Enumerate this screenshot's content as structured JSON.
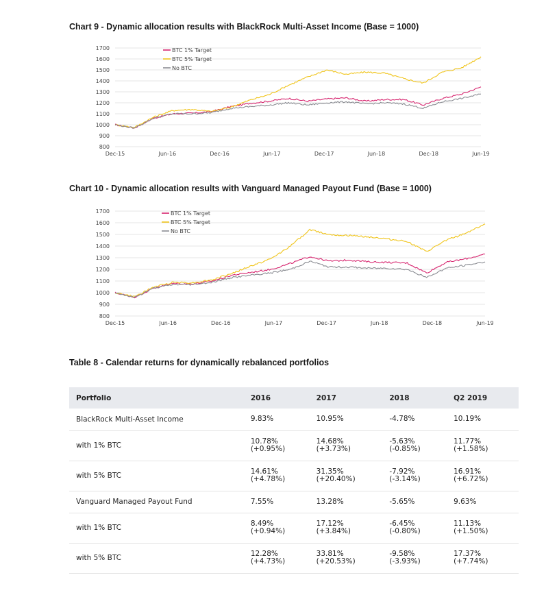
{
  "chart9_title": "Chart 9 - Dynamic allocation results with BlackRock Multi-Asset Income (Base = 1000)",
  "chart10_title": "Chart 10 - Dynamic allocation results with Vanguard Managed Payout Fund (Base = 1000)",
  "table_title": "Table 8 - Calendar returns for dynamically rebalanced portfolios",
  "colors": {
    "btc1": "#d6246e",
    "btc5": "#f0c419",
    "nobtc": "#8a8c92",
    "grid": "#dcdcdc"
  },
  "chart_data": [
    {
      "type": "line",
      "title": "Chart 9 - Dynamic allocation results with BlackRock Multi-Asset Income (Base = 1000)",
      "x_ticks": [
        "Dec-15",
        "Jun-16",
        "Dec-16",
        "Jun-17",
        "Dec-17",
        "Jun-18",
        "Dec-18",
        "Jun-19"
      ],
      "y_ticks": [
        800,
        900,
        1000,
        1100,
        1200,
        1300,
        1400,
        1500,
        1600,
        1700
      ],
      "ylim": [
        800,
        1700
      ],
      "legend_position": "top-left",
      "grid": true,
      "series": [
        {
          "name": "BTC 1% Target",
          "color": "#d6246e",
          "values": [
            1000,
            970,
            1060,
            1100,
            1105,
            1120,
            1165,
            1195,
            1215,
            1240,
            1215,
            1235,
            1245,
            1215,
            1230,
            1230,
            1180,
            1240,
            1280,
            1345
          ]
        },
        {
          "name": "BTC 5% Target",
          "color": "#f0c419",
          "values": [
            1000,
            975,
            1070,
            1130,
            1140,
            1120,
            1160,
            1225,
            1275,
            1360,
            1435,
            1500,
            1460,
            1480,
            1470,
            1420,
            1380,
            1480,
            1520,
            1620
          ]
        },
        {
          "name": "No BTC",
          "color": "#8a8c92",
          "values": [
            1000,
            970,
            1060,
            1100,
            1100,
            1110,
            1150,
            1165,
            1180,
            1200,
            1180,
            1200,
            1210,
            1190,
            1200,
            1190,
            1150,
            1210,
            1240,
            1280
          ]
        }
      ]
    },
    {
      "type": "line",
      "title": "Chart 10 - Dynamic allocation results with Vanguard Managed Payout Fund (Base = 1000)",
      "x_ticks": [
        "Dec-15",
        "Jun-16",
        "Dec-16",
        "Jun-17",
        "Dec-17",
        "Jun-18",
        "Dec-18",
        "Jun-19"
      ],
      "y_ticks": [
        800,
        900,
        1000,
        1100,
        1200,
        1300,
        1400,
        1500,
        1600,
        1700
      ],
      "ylim": [
        800,
        1700
      ],
      "legend_position": "top-left",
      "grid": true,
      "series": [
        {
          "name": "BTC 1% Target",
          "color": "#d6246e",
          "values": [
            1000,
            960,
            1040,
            1080,
            1075,
            1100,
            1150,
            1175,
            1200,
            1250,
            1310,
            1270,
            1280,
            1265,
            1260,
            1255,
            1170,
            1260,
            1290,
            1330
          ]
        },
        {
          "name": "BTC 5% Target",
          "color": "#f0c419",
          "values": [
            1000,
            965,
            1050,
            1090,
            1085,
            1110,
            1165,
            1230,
            1290,
            1400,
            1540,
            1500,
            1490,
            1480,
            1460,
            1440,
            1350,
            1450,
            1510,
            1590
          ]
        },
        {
          "name": "No BTC",
          "color": "#8a8c92",
          "values": [
            1000,
            960,
            1040,
            1070,
            1070,
            1090,
            1130,
            1150,
            1170,
            1200,
            1270,
            1220,
            1220,
            1210,
            1210,
            1200,
            1130,
            1210,
            1235,
            1265
          ]
        }
      ]
    }
  ],
  "table": {
    "headers": [
      "Portfolio",
      "2016",
      "2017",
      "2018",
      "Q2 2019"
    ],
    "rows": [
      {
        "name": "BlackRock Multi-Asset Income",
        "cells": [
          [
            "9.83%"
          ],
          [
            "10.95%"
          ],
          [
            "-4.78%"
          ],
          [
            "10.19%"
          ]
        ]
      },
      {
        "name": "with 1% BTC",
        "cells": [
          [
            "10.78%",
            "(+0.95%)"
          ],
          [
            "14.68%",
            "(+3.73%)"
          ],
          [
            "-5.63%",
            "(-0.85%)"
          ],
          [
            "11.77%",
            "(+1.58%)"
          ]
        ]
      },
      {
        "name": "with 5% BTC",
        "cells": [
          [
            "14.61%",
            "(+4.78%)"
          ],
          [
            "31.35%",
            "(+20.40%)"
          ],
          [
            "-7.92%",
            "(-3.14%)"
          ],
          [
            "16.91%",
            "(+6.72%)"
          ]
        ]
      },
      {
        "name": "Vanguard Managed Payout Fund",
        "cells": [
          [
            "7.55%"
          ],
          [
            "13.28%"
          ],
          [
            "-5.65%"
          ],
          [
            "9.63%"
          ]
        ]
      },
      {
        "name": "with 1% BTC",
        "cells": [
          [
            "8.49%",
            "(+0.94%)"
          ],
          [
            "17.12%",
            "(+3.84%)"
          ],
          [
            "-6.45%",
            "(-0.80%)"
          ],
          [
            "11.13%",
            "(+1.50%)"
          ]
        ]
      },
      {
        "name": "with 5% BTC",
        "cells": [
          [
            "12.28%",
            "(+4.73%)"
          ],
          [
            "33.81%",
            "(+20.53%)"
          ],
          [
            "-9.58%",
            "(-3.93%)"
          ],
          [
            "17.37%",
            "(+7.74%)"
          ]
        ]
      }
    ]
  }
}
